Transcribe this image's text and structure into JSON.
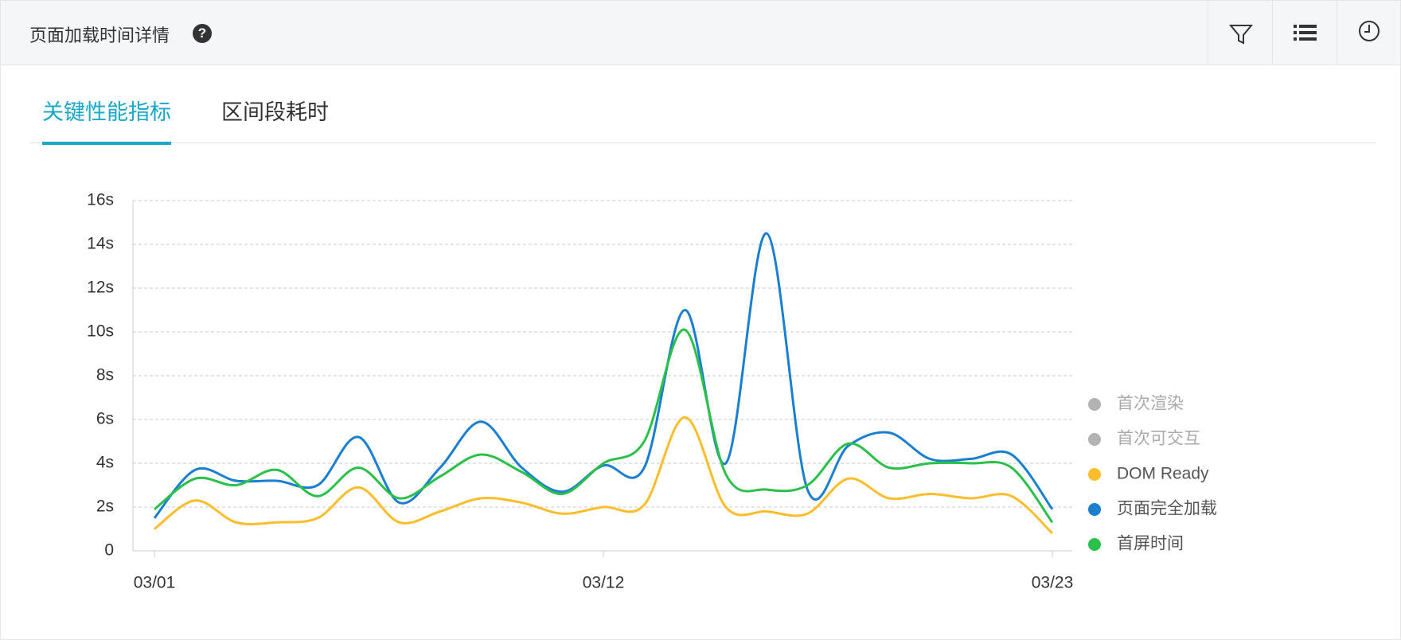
{
  "header": {
    "title": "页面加载时间详情"
  },
  "tabs": [
    "关键性能指标",
    "区间段耗时"
  ],
  "chart_data": {
    "type": "line",
    "categories": [
      "03/01",
      null,
      null,
      null,
      null,
      null,
      null,
      null,
      null,
      null,
      null,
      "03/12",
      null,
      null,
      null,
      null,
      null,
      null,
      null,
      null,
      null,
      null,
      "03/23"
    ],
    "ylim": [
      0,
      16
    ],
    "yticks": [
      0,
      {
        "value": 2,
        "label": "2s"
      },
      {
        "value": 4,
        "label": "4s"
      },
      {
        "value": 6,
        "label": "6s"
      },
      {
        "value": 8,
        "label": "8s"
      },
      {
        "value": 10,
        "label": "10s"
      },
      {
        "value": 12,
        "label": "12s"
      },
      {
        "value": 14,
        "label": "14s"
      },
      {
        "value": 16,
        "label": "16s"
      }
    ],
    "grid": true,
    "legend": "right",
    "series": [
      {
        "name": "首次渲染",
        "color": "#b3b3b3",
        "visible": false
      },
      {
        "name": "首次可交互",
        "color": "#b3b3b3",
        "visible": false
      },
      {
        "name": "DOM Ready",
        "color": "#fbbd2c",
        "values": [
          1.0,
          2.3,
          1.3,
          1.3,
          1.5,
          2.9,
          1.3,
          1.8,
          2.4,
          2.2,
          1.7,
          2.0,
          2.1,
          6.1,
          2.0,
          1.8,
          1.7,
          3.3,
          2.4,
          2.6,
          2.4,
          2.5,
          0.8
        ]
      },
      {
        "name": "页面完全加载",
        "color": "#1a7fd0",
        "values": [
          1.5,
          3.7,
          3.2,
          3.2,
          3.0,
          5.2,
          2.2,
          3.8,
          5.9,
          3.8,
          2.7,
          3.9,
          3.8,
          11.0,
          4.0,
          14.5,
          2.8,
          4.8,
          5.4,
          4.2,
          4.2,
          4.4,
          1.9
        ]
      },
      {
        "name": "首屏时间",
        "color": "#2bc04a",
        "values": [
          1.9,
          3.3,
          3.0,
          3.7,
          2.5,
          3.8,
          2.4,
          3.4,
          4.4,
          3.6,
          2.6,
          4.0,
          5.0,
          10.1,
          3.5,
          2.8,
          3.0,
          4.9,
          3.8,
          4.0,
          4.0,
          3.8,
          1.3
        ]
      }
    ]
  }
}
